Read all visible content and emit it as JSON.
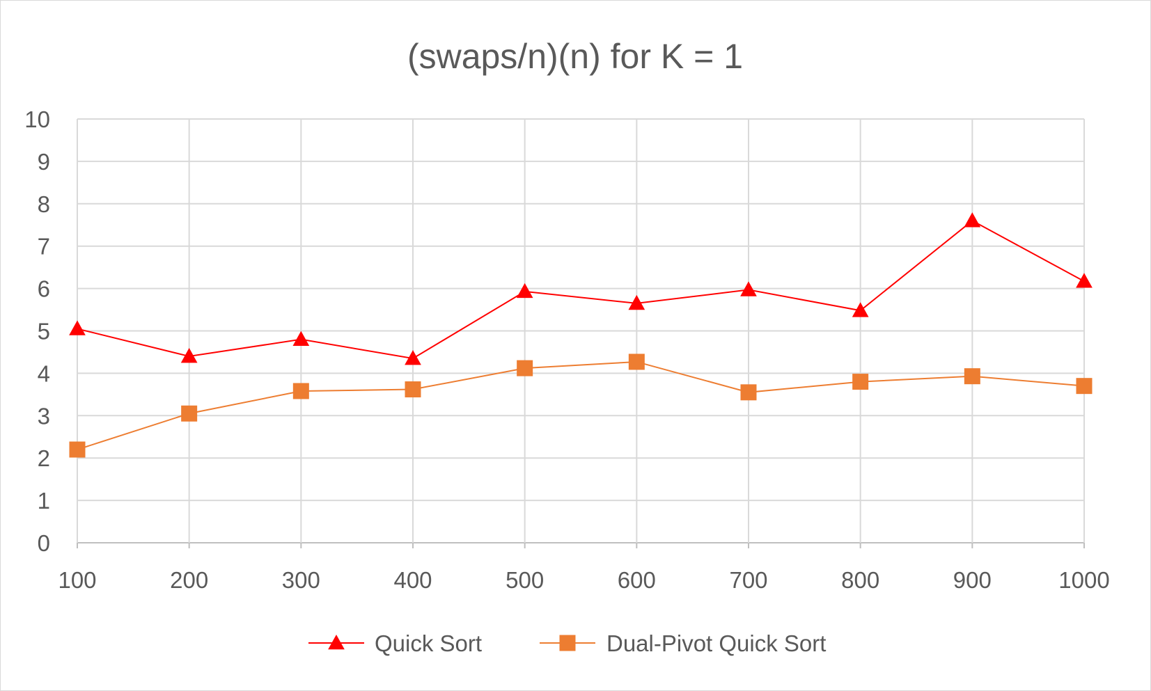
{
  "chart_data": {
    "type": "line",
    "title": "(swaps/n)(n) for K = 1",
    "xlabel": "",
    "ylabel": "",
    "categories": [
      "100",
      "200",
      "300",
      "400",
      "500",
      "600",
      "700",
      "800",
      "900",
      "1000"
    ],
    "ylim": [
      0,
      10
    ],
    "yticks": [
      "0",
      "1",
      "2",
      "3",
      "4",
      "5",
      "6",
      "7",
      "8",
      "9",
      "10"
    ],
    "grid": true,
    "legend_position": "bottom",
    "series": [
      {
        "name": "Quick Sort",
        "color": "#ff0000",
        "marker": "triangle",
        "values": [
          5.05,
          4.4,
          4.8,
          4.35,
          5.93,
          5.65,
          5.97,
          5.48,
          7.6,
          6.17
        ]
      },
      {
        "name": "Dual-Pivot Quick Sort",
        "color": "#ed7d31",
        "marker": "square",
        "values": [
          2.2,
          3.05,
          3.58,
          3.62,
          4.12,
          4.27,
          3.55,
          3.8,
          3.93,
          3.7
        ]
      }
    ]
  }
}
